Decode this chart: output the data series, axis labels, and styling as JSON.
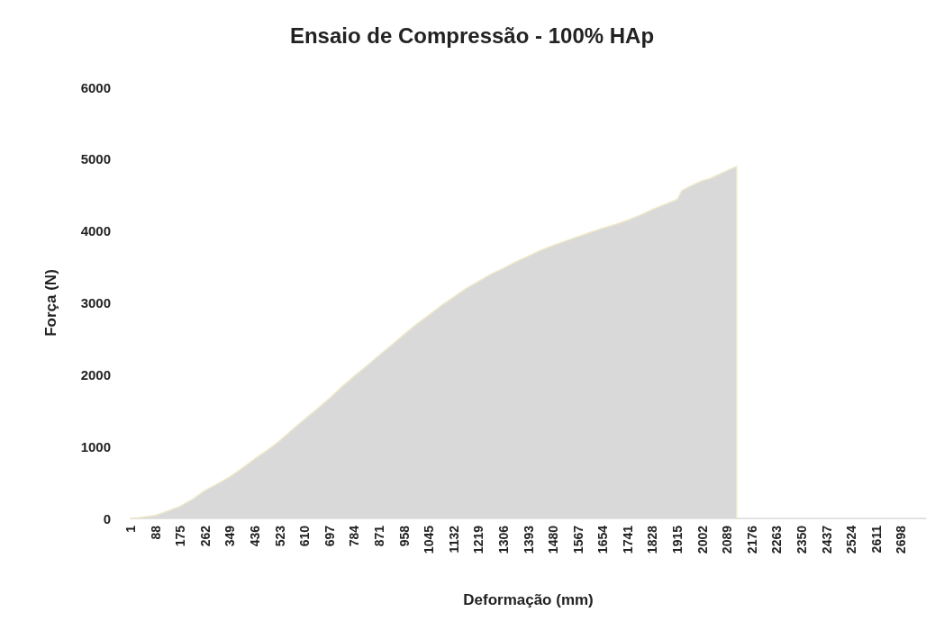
{
  "chart_data": {
    "type": "area",
    "title": "Ensaio de Compressão - 100% HAp",
    "xlabel": "Deformação (mm)",
    "ylabel": "Força (N)",
    "x": [
      1,
      30,
      88,
      130,
      175,
      220,
      262,
      305,
      349,
      392,
      436,
      480,
      523,
      566,
      610,
      653,
      697,
      740,
      784,
      827,
      871,
      914,
      958,
      1001,
      1045,
      1088,
      1132,
      1175,
      1219,
      1262,
      1306,
      1349,
      1393,
      1436,
      1480,
      1523,
      1567,
      1610,
      1654,
      1697,
      1741,
      1784,
      1828,
      1871,
      1915,
      1930,
      1958,
      2002,
      2030,
      2045,
      2089,
      2122,
      2122
    ],
    "series": [
      {
        "color": "#d9d9d9",
        "values": [
          0,
          10,
          40,
          100,
          170,
          270,
          390,
          480,
          580,
          700,
          830,
          950,
          1080,
          1230,
          1380,
          1520,
          1670,
          1830,
          1980,
          2120,
          2270,
          2410,
          2560,
          2700,
          2830,
          2960,
          3080,
          3200,
          3300,
          3400,
          3480,
          3570,
          3650,
          3730,
          3800,
          3860,
          3920,
          3980,
          4040,
          4090,
          4150,
          4220,
          4300,
          4370,
          4440,
          4560,
          4620,
          4700,
          4730,
          4760,
          4840,
          4900,
          0
        ]
      }
    ],
    "xlim": [
      1,
      2785
    ],
    "xticks": [
      1,
      88,
      175,
      262,
      349,
      436,
      523,
      610,
      697,
      784,
      871,
      958,
      1045,
      1132,
      1219,
      1306,
      1393,
      1480,
      1567,
      1654,
      1741,
      1828,
      1915,
      2002,
      2089,
      2176,
      2263,
      2350,
      2437,
      2524,
      2611,
      2698
    ],
    "ylim": [
      0,
      6000
    ],
    "yticks": [
      0,
      1000,
      2000,
      3000,
      4000,
      5000,
      6000
    ],
    "grid": false,
    "marker": "none"
  }
}
